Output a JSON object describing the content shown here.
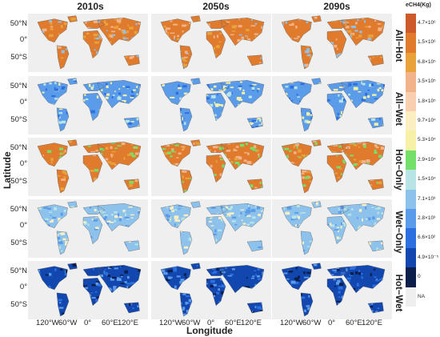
{
  "columns": [
    "2010s",
    "2050s",
    "2090s"
  ],
  "rows": [
    "All−Hot",
    "All−Wet",
    "Hot−Only",
    "Wet−Only",
    "Hot−Wet"
  ],
  "y_axis": {
    "title": "Latitude",
    "ticks": [
      "50°N",
      "0°",
      "50°S"
    ]
  },
  "x_axis": {
    "title": "Longitude",
    "ticks": [
      "120°W",
      "60°W",
      "0°",
      "60°E",
      "120°E"
    ]
  },
  "legend": {
    "title": "eCH4(Kg)",
    "entries": [
      {
        "label": "4.7×10⁶",
        "color": "#cc5a2a"
      },
      {
        "label": "1.5×10⁶",
        "color": "#e07b2e"
      },
      {
        "label": "6.8×10⁵",
        "color": "#e9a13a"
      },
      {
        "label": "3.5×10⁵",
        "color": "#f2b38a"
      },
      {
        "label": "1.8×10⁵",
        "color": "#f8d0b0"
      },
      {
        "label": "9.7×10⁴",
        "color": "#fbeec0"
      },
      {
        "label": "5.3×10⁴",
        "color": "#f6f1a6"
      },
      {
        "label": "2.9×10⁴",
        "color": "#74e06a"
      },
      {
        "label": "1.5×10⁴",
        "color": "#b8e4e6"
      },
      {
        "label": "7.1×10³",
        "color": "#8dc2ec"
      },
      {
        "label": "2.8×10³",
        "color": "#5a9bea"
      },
      {
        "label": "6.6×10²",
        "color": "#2c6fe0"
      },
      {
        "label": "4.9×10⁻⁵",
        "color": "#1247b0"
      },
      {
        "label": "0",
        "color": "#0b1f4a"
      },
      {
        "label": "NA",
        "color": "#efefef"
      }
    ]
  },
  "palettes": {
    "All−Hot": [
      "#e07b2e",
      "#e9a13a",
      "#f2b38a",
      "#8dc2ec"
    ],
    "All−Wet": [
      "#5a9bea",
      "#b8e4e6",
      "#2c6fe0",
      "#f6f1a6"
    ],
    "Hot−Only": [
      "#e07b2e",
      "#f2b38a",
      "#e9a13a",
      "#74e06a"
    ],
    "Wet−Only": [
      "#8dc2ec",
      "#b8e4e6",
      "#5a9bea",
      "#fbeec0"
    ],
    "Hot−Wet": [
      "#1247b0",
      "#2c6fe0",
      "#0b1f4a",
      "#5a9bea"
    ]
  }
}
